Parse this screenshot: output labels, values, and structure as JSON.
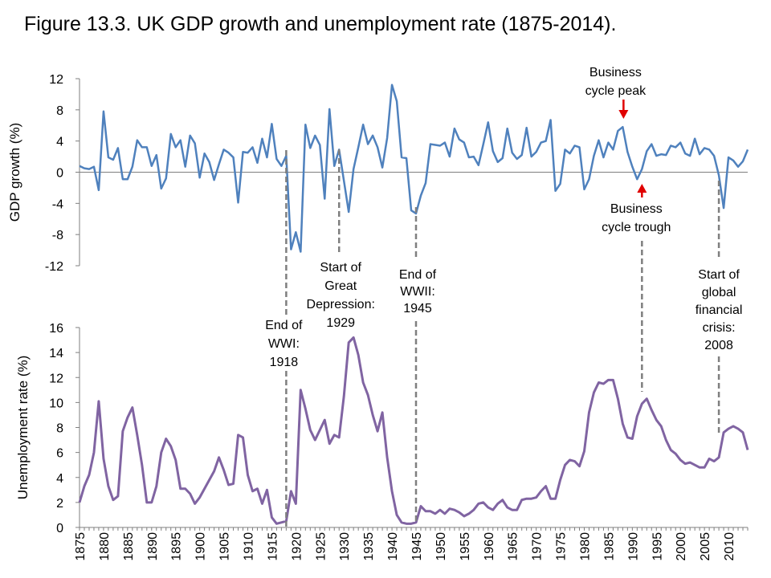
{
  "title": "Figure 13.3. UK GDP growth and unemployment rate (1875-2014).",
  "colors": {
    "gdp": "#4f81bd",
    "unemployment": "#8064a2",
    "event_line": "#7f7f7f",
    "arrow": "#e00000",
    "axis": "#7f7f7f"
  },
  "chart_data": [
    {
      "type": "line",
      "ylabel": "GDP growth (%)",
      "ylim": [
        -12,
        12
      ],
      "yticks": [
        "12",
        "8",
        "4",
        "0",
        "-4",
        "-8",
        "-12"
      ],
      "series": [
        {
          "x_start": 1875,
          "values": [
            0.8,
            0.5,
            0.4,
            0.7,
            -2.3,
            7.8,
            1.9,
            1.6,
            3.1,
            -0.9,
            -0.9,
            0.7,
            4.1,
            3.2,
            3.2,
            0.8,
            2.2,
            -2.1,
            -0.8,
            4.9,
            3.2,
            4.1,
            0.7,
            4.7,
            3.7,
            -0.7,
            2.4,
            1.3,
            -1.0,
            1.0,
            2.9,
            2.5,
            1.9,
            -3.9,
            2.6,
            2.5,
            3.2,
            1.2,
            4.3,
            1.9,
            6.2,
            1.7,
            0.8,
            2.1,
            -9.9,
            -7.7,
            -10.2,
            6.1,
            3.1,
            4.7,
            3.5,
            -3.4,
            8.1,
            0.8,
            2.9,
            -1.1,
            -5.1,
            0.4,
            3.2,
            6.1,
            3.6,
            4.7,
            3.2,
            0.6,
            4.4,
            11.2,
            9.1,
            1.9,
            1.8,
            -4.9,
            -5.3,
            -3.0,
            -1.4,
            3.6,
            3.5,
            3.4,
            3.8,
            2.0,
            5.6,
            4.2,
            3.8,
            1.9,
            2.0,
            0.9,
            3.6,
            6.4,
            2.7,
            1.3,
            1.8,
            5.6,
            2.5,
            1.7,
            2.2,
            5.7,
            2.0,
            2.6,
            3.8,
            4.0,
            6.7,
            -2.4,
            -1.5,
            2.9,
            2.4,
            3.4,
            3.2,
            -2.2,
            -0.9,
            2.1,
            4.1,
            1.9,
            3.8,
            2.9,
            5.3,
            5.8,
            2.6,
            0.7,
            -0.9,
            0.4,
            2.7,
            3.6,
            2.1,
            2.3,
            2.2,
            3.4,
            3.2,
            3.8,
            2.4,
            2.1,
            4.3,
            2.3,
            3.1,
            2.9,
            2.1,
            -0.4,
            -4.6,
            1.9,
            1.5,
            0.7,
            1.4,
            2.9
          ]
        }
      ]
    },
    {
      "type": "line",
      "ylabel": "Unemployment rate (%)",
      "ylim": [
        0,
        16
      ],
      "yticks": [
        "16",
        "14",
        "12",
        "10",
        "8",
        "6",
        "4",
        "2",
        "0"
      ],
      "x_ticks": [
        "1875",
        "1880",
        "1885",
        "1890",
        "1895",
        "1900",
        "1905",
        "1910",
        "1915",
        "1920",
        "1925",
        "1930",
        "1935",
        "1940",
        "1945",
        "1950",
        "1955",
        "1960",
        "1965",
        "1970",
        "1975",
        "1980",
        "1985",
        "1990",
        "1995",
        "2000",
        "2005",
        "2010"
      ],
      "xlim": [
        1875,
        2014
      ],
      "series": [
        {
          "x_start": 1875,
          "values": [
            2.0,
            3.3,
            4.2,
            6.0,
            10.1,
            5.5,
            3.3,
            2.2,
            2.5,
            7.7,
            8.8,
            9.6,
            7.4,
            5.0,
            2.0,
            2.0,
            3.3,
            6.0,
            7.1,
            6.5,
            5.4,
            3.1,
            3.1,
            2.7,
            1.9,
            2.4,
            3.1,
            3.8,
            4.5,
            5.6,
            4.6,
            3.4,
            3.5,
            7.4,
            7.2,
            4.2,
            2.9,
            3.1,
            1.9,
            3.0,
            0.8,
            0.3,
            0.4,
            0.5,
            2.9,
            1.9,
            11.0,
            9.5,
            7.8,
            7.0,
            7.8,
            8.6,
            6.7,
            7.4,
            7.2,
            10.5,
            14.8,
            15.2,
            13.8,
            11.6,
            10.6,
            9.0,
            7.7,
            9.2,
            5.6,
            2.9,
            1.0,
            0.4,
            0.3,
            0.3,
            0.4,
            1.7,
            1.3,
            1.3,
            1.1,
            1.4,
            1.1,
            1.5,
            1.4,
            1.2,
            0.9,
            1.1,
            1.4,
            1.9,
            2.0,
            1.6,
            1.4,
            1.9,
            2.2,
            1.6,
            1.4,
            1.4,
            2.2,
            2.3,
            2.3,
            2.4,
            2.9,
            3.3,
            2.3,
            2.3,
            3.8,
            5.0,
            5.4,
            5.3,
            4.9,
            6.1,
            9.2,
            10.8,
            11.6,
            11.5,
            11.8,
            11.8,
            10.3,
            8.3,
            7.2,
            7.1,
            8.9,
            9.9,
            10.3,
            9.4,
            8.6,
            8.1,
            7.0,
            6.2,
            5.9,
            5.4,
            5.1,
            5.2,
            5.0,
            4.8,
            4.8,
            5.5,
            5.3,
            5.6,
            7.6,
            7.9,
            8.1,
            7.9,
            7.6,
            6.2
          ]
        }
      ]
    }
  ],
  "annotations": {
    "end_ww1": {
      "lines": [
        "End of",
        "WWI:",
        "1918"
      ],
      "year": 1918
    },
    "great_depression": {
      "lines": [
        "Start of",
        "Great",
        "Depression:",
        "1929"
      ],
      "year": 1929
    },
    "end_ww2": {
      "lines": [
        "End of",
        "WWII:",
        "1945"
      ],
      "year": 1945
    },
    "financial_crisis": {
      "lines": [
        "Start of",
        "global",
        "financial",
        "crisis:",
        "2008"
      ],
      "year": 2008
    },
    "cycle_peak": {
      "lines": [
        "Business",
        "cycle peak"
      ],
      "year": 1989
    },
    "cycle_trough": {
      "lines": [
        "Business",
        "cycle trough"
      ],
      "year": 1992
    }
  }
}
